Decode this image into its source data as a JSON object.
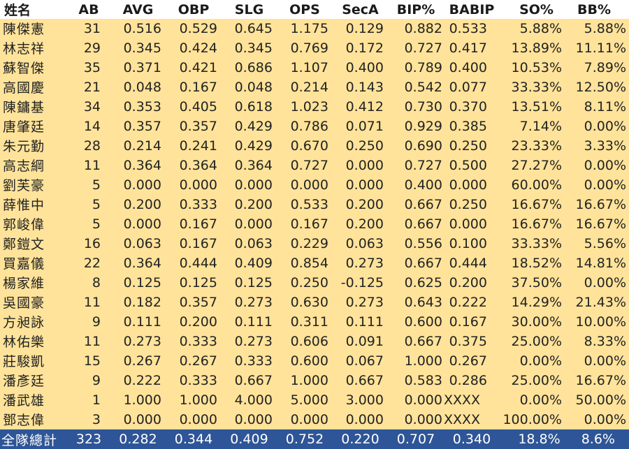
{
  "headers": [
    "姓名",
    "AB",
    "AVG",
    "OBP",
    "SLG",
    "OPS",
    "SecA",
    "BIP%",
    "BABIP",
    "SO%",
    "BB%"
  ],
  "rows": [
    [
      "陳傑憲",
      "31",
      "0.516",
      "0.529",
      "0.645",
      "1.175",
      "0.129",
      "0.882",
      "0.533",
      "5.88%",
      "5.88%"
    ],
    [
      "林志祥",
      "29",
      "0.345",
      "0.424",
      "0.345",
      "0.769",
      "0.172",
      "0.727",
      "0.417",
      "13.89%",
      "11.11%"
    ],
    [
      "蘇智傑",
      "35",
      "0.371",
      "0.421",
      "0.686",
      "1.107",
      "0.400",
      "0.789",
      "0.400",
      "10.53%",
      "7.89%"
    ],
    [
      "高國慶",
      "21",
      "0.048",
      "0.167",
      "0.048",
      "0.214",
      "0.143",
      "0.542",
      "0.077",
      "33.33%",
      "12.50%"
    ],
    [
      "陳鏞基",
      "34",
      "0.353",
      "0.405",
      "0.618",
      "1.023",
      "0.412",
      "0.730",
      "0.370",
      "13.51%",
      "8.11%"
    ],
    [
      "唐肇廷",
      "14",
      "0.357",
      "0.357",
      "0.429",
      "0.786",
      "0.071",
      "0.929",
      "0.385",
      "7.14%",
      "0.00%"
    ],
    [
      "朱元勤",
      "28",
      "0.214",
      "0.241",
      "0.429",
      "0.670",
      "0.250",
      "0.690",
      "0.250",
      "23.33%",
      "3.33%"
    ],
    [
      "高志綱",
      "11",
      "0.364",
      "0.364",
      "0.364",
      "0.727",
      "0.000",
      "0.727",
      "0.500",
      "27.27%",
      "0.00%"
    ],
    [
      "劉芙豪",
      "5",
      "0.000",
      "0.000",
      "0.000",
      "0.000",
      "0.000",
      "0.400",
      "0.000",
      "60.00%",
      "0.00%"
    ],
    [
      "薛惟中",
      "5",
      "0.200",
      "0.333",
      "0.200",
      "0.533",
      "0.200",
      "0.667",
      "0.250",
      "16.67%",
      "16.67%"
    ],
    [
      "郭峻偉",
      "5",
      "0.000",
      "0.167",
      "0.000",
      "0.167",
      "0.200",
      "0.667",
      "0.000",
      "16.67%",
      "16.67%"
    ],
    [
      "鄭鎧文",
      "16",
      "0.063",
      "0.167",
      "0.063",
      "0.229",
      "0.063",
      "0.556",
      "0.100",
      "33.33%",
      "5.56%"
    ],
    [
      "買嘉儀",
      "22",
      "0.364",
      "0.444",
      "0.409",
      "0.854",
      "0.273",
      "0.667",
      "0.444",
      "18.52%",
      "14.81%"
    ],
    [
      "楊家維",
      "8",
      "0.125",
      "0.125",
      "0.125",
      "0.250",
      "-0.125",
      "0.625",
      "0.200",
      "37.50%",
      "0.00%"
    ],
    [
      "吳國豪",
      "11",
      "0.182",
      "0.357",
      "0.273",
      "0.630",
      "0.273",
      "0.643",
      "0.222",
      "14.29%",
      "21.43%"
    ],
    [
      "方昶詠",
      "9",
      "0.111",
      "0.200",
      "0.111",
      "0.311",
      "0.111",
      "0.600",
      "0.167",
      "30.00%",
      "10.00%"
    ],
    [
      "林佑樂",
      "11",
      "0.273",
      "0.333",
      "0.273",
      "0.606",
      "0.091",
      "0.667",
      "0.375",
      "25.00%",
      "8.33%"
    ],
    [
      "莊駿凱",
      "15",
      "0.267",
      "0.267",
      "0.333",
      "0.600",
      "0.067",
      "1.000",
      "0.267",
      "0.00%",
      "0.00%"
    ],
    [
      "潘彥廷",
      "9",
      "0.222",
      "0.333",
      "0.667",
      "1.000",
      "0.667",
      "0.583",
      "0.286",
      "25.00%",
      "16.67%"
    ],
    [
      "潘武雄",
      "1",
      "1.000",
      "1.000",
      "4.000",
      "5.000",
      "3.000",
      "0.000",
      "XXXX",
      "0.00%",
      "50.00%"
    ],
    [
      "鄧志偉",
      "3",
      "0.000",
      "0.000",
      "0.000",
      "0.000",
      "0.000",
      "0.000",
      "XXXX",
      "100.00%",
      "0.00%"
    ]
  ],
  "total": [
    "全隊總計",
    "323",
    "0.282",
    "0.344",
    "0.409",
    "0.752",
    "0.220",
    "0.707",
    "0.340",
    "18.8%",
    "8.6%"
  ],
  "colors": {
    "row_background": "#ffe39a",
    "total_background": "#2e5597",
    "total_text": "#ffffff"
  }
}
